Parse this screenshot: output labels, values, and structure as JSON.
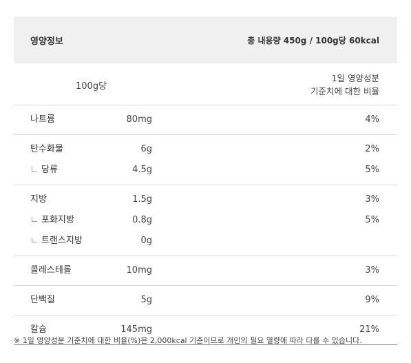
{
  "header": {
    "title": "영양정보",
    "total": "총 내용량 450g / 100g당 60kcal"
  },
  "subhead": {
    "per": "100g당",
    "ref_line1": "1일 영양성분",
    "ref_line2": "기준치에 대한 비율"
  },
  "groups": [
    {
      "rows": [
        {
          "name": "나트륨",
          "amount": "80mg",
          "percent": "4%"
        }
      ]
    },
    {
      "rows": [
        {
          "name": "탄수화물",
          "amount": "6g",
          "percent": "2%"
        },
        {
          "name": "당류",
          "amount": "4.5g",
          "percent": "5%"
        }
      ]
    },
    {
      "rows": [
        {
          "name": "지방",
          "amount": "1.5g",
          "percent": "3%"
        },
        {
          "name": "포화지방",
          "amount": "0.8g",
          "percent": "5%"
        },
        {
          "name": "트랜스지방",
          "amount": "0g",
          "percent": ""
        }
      ]
    },
    {
      "rows": [
        {
          "name": "콜레스테롤",
          "amount": "10mg",
          "percent": "3%"
        }
      ]
    },
    {
      "rows": [
        {
          "name": "단백질",
          "amount": "5g",
          "percent": "9%"
        }
      ]
    },
    {
      "rows": [
        {
          "name": "칼슘",
          "amount": "145mg",
          "percent": "21%"
        }
      ]
    }
  ],
  "footnote": "※ 1일 영양성분 기준치에 대한 비율(%)은 2,000kcal 기준이므로 개인의 필요 열량에 따라 다를 수 있습니다."
}
